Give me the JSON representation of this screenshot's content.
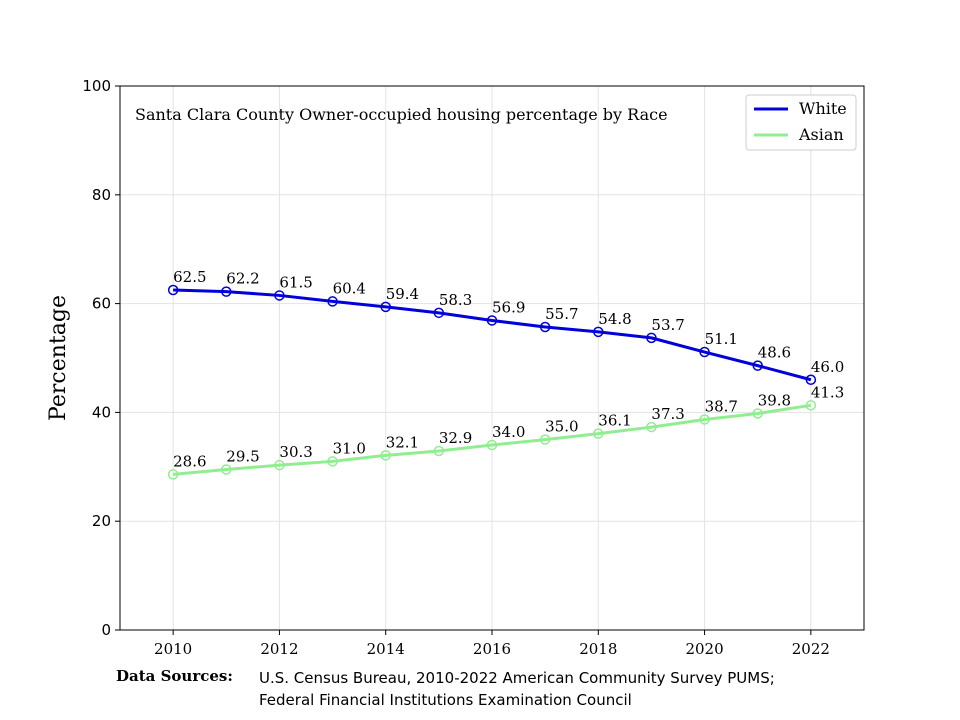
{
  "chart_data": {
    "type": "line",
    "title": "Santa Clara County Owner-occupied housing percentage by Race",
    "xlabel": "",
    "ylabel": "Percentage",
    "x": [
      2010,
      2011,
      2012,
      2013,
      2014,
      2015,
      2016,
      2017,
      2018,
      2019,
      2020,
      2021,
      2022
    ],
    "xticks": [
      2010,
      2012,
      2014,
      2016,
      2018,
      2020,
      2022
    ],
    "yticks": [
      0,
      20,
      40,
      60,
      80,
      100
    ],
    "xlim": [
      2009,
      2023
    ],
    "ylim": [
      0,
      100
    ],
    "grid": true,
    "legend_position": "top-right",
    "series": [
      {
        "name": "White",
        "color": "#0000dd",
        "marker": "hollow-circle",
        "values": [
          62.5,
          62.2,
          61.5,
          60.4,
          59.4,
          58.3,
          56.9,
          55.7,
          54.8,
          53.7,
          51.1,
          48.6,
          46.0
        ],
        "labels": [
          "62.5",
          "62.2",
          "61.5",
          "60.4",
          "59.4",
          "58.3",
          "56.9",
          "55.7",
          "54.8",
          "53.7",
          "51.1",
          "48.6",
          "46.0"
        ]
      },
      {
        "name": "Asian",
        "color": "#90ee90",
        "marker": "hollow-circle",
        "values": [
          28.6,
          29.5,
          30.3,
          31.0,
          32.1,
          32.9,
          34.0,
          35.0,
          36.1,
          37.3,
          38.7,
          39.8,
          41.3
        ],
        "labels": [
          "28.6",
          "29.5",
          "30.3",
          "31.0",
          "32.1",
          "32.9",
          "34.0",
          "35.0",
          "36.1",
          "37.3",
          "38.7",
          "39.8",
          "41.3"
        ]
      }
    ]
  },
  "footer": {
    "label": "Data Sources:",
    "line1": "U.S. Census Bureau, 2010-2022 American Community Survey PUMS;",
    "line2": "Federal Financial Institutions Examination Council"
  }
}
